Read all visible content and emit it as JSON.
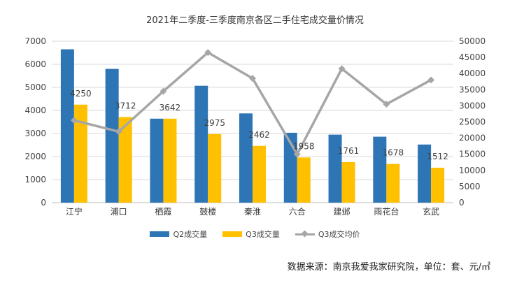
{
  "chart_data": {
    "type": "bar",
    "title": "2021年二季度-三季度南京各区二手住宅成交量价情况",
    "categories": [
      "江宁",
      "浦口",
      "栖霞",
      "鼓楼",
      "秦淮",
      "六合",
      "建邺",
      "雨花台",
      "玄武"
    ],
    "series": [
      {
        "name": "Q2成交量",
        "type": "bar",
        "axis": "left",
        "color": "#2E75B6",
        "values": [
          6650,
          5800,
          3642,
          5070,
          3870,
          3030,
          2950,
          2860,
          2520
        ]
      },
      {
        "name": "Q3成交量",
        "type": "bar",
        "axis": "left",
        "color": "#FFC000",
        "values": [
          4250,
          3712,
          3642,
          2975,
          2462,
          1958,
          1761,
          1678,
          1512
        ],
        "data_labels": [
          "4250",
          "3712",
          "3642",
          "2975",
          "2462",
          "1958",
          "1761",
          "1678",
          "1512"
        ]
      },
      {
        "name": "Q3成交均价",
        "type": "line",
        "axis": "right",
        "color": "#A6A6A6",
        "values": [
          25500,
          22000,
          34500,
          46500,
          38500,
          15000,
          41500,
          30500,
          38000
        ]
      }
    ],
    "y_left": {
      "ylim": [
        0,
        7000
      ],
      "ticks": [
        "0",
        "1000",
        "2000",
        "3000",
        "4000",
        "5000",
        "6000",
        "7000"
      ]
    },
    "y_right": {
      "ylim": [
        0,
        50000
      ],
      "ticks": [
        "0",
        "5000",
        "10000",
        "15000",
        "20000",
        "25000",
        "30000",
        "35000",
        "40000",
        "45000",
        "50000"
      ]
    },
    "grid": true,
    "legend_position": "bottom"
  },
  "source_note": "数据来源：南京我爱我家研究院，单位：套、元/㎡"
}
